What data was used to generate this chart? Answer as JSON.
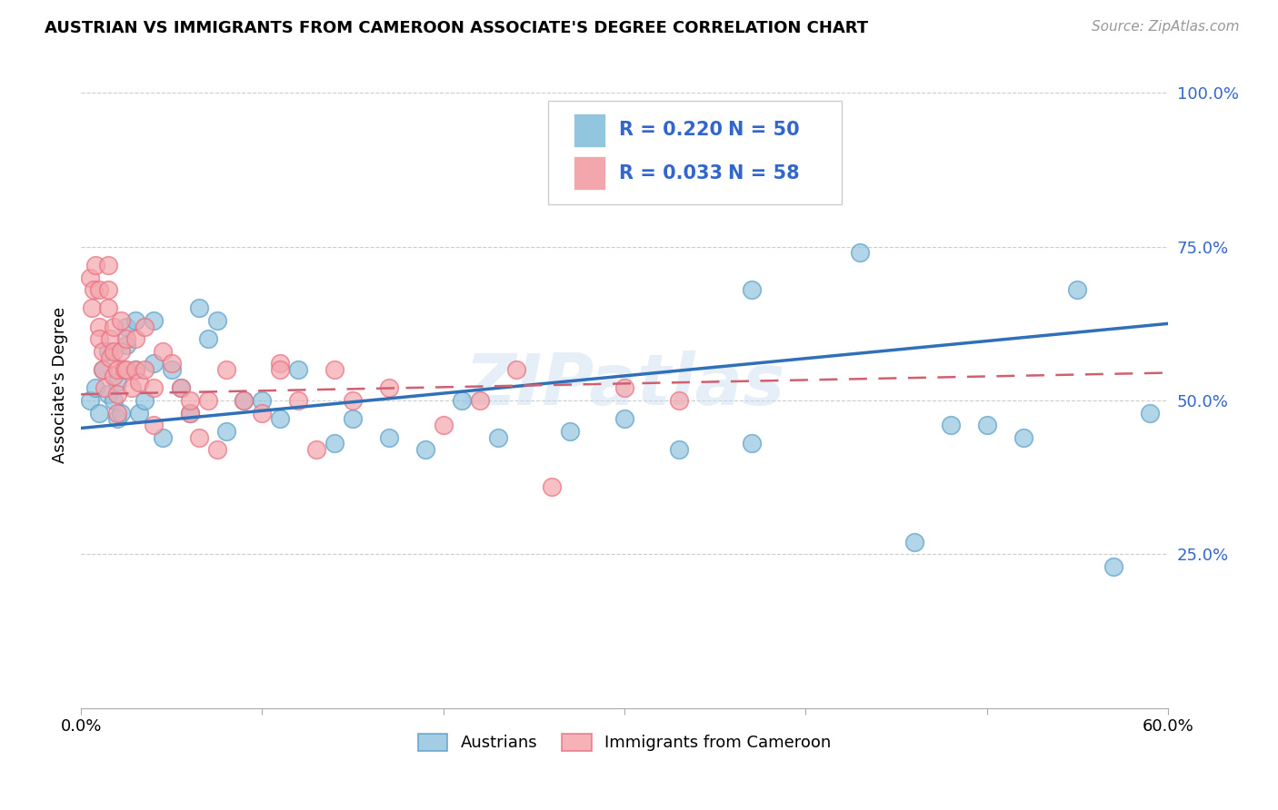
{
  "title": "AUSTRIAN VS IMMIGRANTS FROM CAMEROON ASSOCIATE'S DEGREE CORRELATION CHART",
  "source": "Source: ZipAtlas.com",
  "ylabel": "Associate's Degree",
  "xlim": [
    0.0,
    0.6
  ],
  "ylim": [
    0.0,
    1.05
  ],
  "ytick_vals": [
    0.0,
    0.25,
    0.5,
    0.75,
    1.0
  ],
  "ytick_labels": [
    "",
    "25.0%",
    "50.0%",
    "75.0%",
    "100.0%"
  ],
  "xtick_vals": [
    0.0,
    0.1,
    0.2,
    0.3,
    0.4,
    0.5,
    0.6
  ],
  "xtick_labels": [
    "0.0%",
    "",
    "",
    "",
    "",
    "",
    "60.0%"
  ],
  "watermark": "ZIPatlas",
  "legend_r_blue": "0.220",
  "legend_n_blue": "50",
  "legend_r_pink": "0.033",
  "legend_n_pink": "58",
  "blue_color": "#92c5de",
  "pink_color": "#f4a6ad",
  "blue_edge_color": "#5b9dc9",
  "pink_edge_color": "#e87080",
  "blue_line_color": "#3070b8",
  "pink_line_color": "#d06070",
  "legend_text_color": "#3366cc",
  "legend_label_blue": "Austrians",
  "legend_label_pink": "Immigrants from Cameroon",
  "blue_scatter_x": [
    0.005,
    0.008,
    0.01,
    0.012,
    0.015,
    0.015,
    0.018,
    0.02,
    0.02,
    0.022,
    0.025,
    0.025,
    0.03,
    0.03,
    0.032,
    0.035,
    0.04,
    0.04,
    0.045,
    0.05,
    0.055,
    0.06,
    0.065,
    0.07,
    0.075,
    0.08,
    0.09,
    0.1,
    0.11,
    0.12,
    0.14,
    0.15,
    0.17,
    0.19,
    0.21,
    0.23,
    0.27,
    0.3,
    0.33,
    0.37,
    0.4,
    0.43,
    0.46,
    0.48,
    0.5,
    0.52,
    0.55,
    0.57,
    0.37,
    0.59
  ],
  "blue_scatter_y": [
    0.5,
    0.52,
    0.48,
    0.55,
    0.58,
    0.51,
    0.5,
    0.47,
    0.53,
    0.48,
    0.62,
    0.59,
    0.63,
    0.55,
    0.48,
    0.5,
    0.63,
    0.56,
    0.44,
    0.55,
    0.52,
    0.48,
    0.65,
    0.6,
    0.63,
    0.45,
    0.5,
    0.5,
    0.47,
    0.55,
    0.43,
    0.47,
    0.44,
    0.42,
    0.5,
    0.44,
    0.45,
    0.47,
    0.42,
    0.68,
    0.86,
    0.74,
    0.27,
    0.46,
    0.46,
    0.44,
    0.68,
    0.23,
    0.43,
    0.48
  ],
  "pink_scatter_x": [
    0.005,
    0.006,
    0.007,
    0.008,
    0.01,
    0.01,
    0.01,
    0.012,
    0.012,
    0.013,
    0.015,
    0.015,
    0.015,
    0.016,
    0.016,
    0.018,
    0.018,
    0.018,
    0.02,
    0.02,
    0.02,
    0.022,
    0.022,
    0.024,
    0.025,
    0.025,
    0.028,
    0.03,
    0.03,
    0.032,
    0.035,
    0.035,
    0.04,
    0.04,
    0.045,
    0.05,
    0.055,
    0.06,
    0.065,
    0.07,
    0.075,
    0.08,
    0.09,
    0.1,
    0.11,
    0.13,
    0.15,
    0.17,
    0.2,
    0.22,
    0.24,
    0.26,
    0.14,
    0.3,
    0.33,
    0.11,
    0.06,
    0.12
  ],
  "pink_scatter_y": [
    0.7,
    0.65,
    0.68,
    0.72,
    0.62,
    0.6,
    0.68,
    0.58,
    0.55,
    0.52,
    0.72,
    0.68,
    0.65,
    0.6,
    0.57,
    0.62,
    0.58,
    0.54,
    0.55,
    0.51,
    0.48,
    0.63,
    0.58,
    0.55,
    0.6,
    0.55,
    0.52,
    0.6,
    0.55,
    0.53,
    0.62,
    0.55,
    0.52,
    0.46,
    0.58,
    0.56,
    0.52,
    0.48,
    0.44,
    0.5,
    0.42,
    0.55,
    0.5,
    0.48,
    0.56,
    0.42,
    0.5,
    0.52,
    0.46,
    0.5,
    0.55,
    0.36,
    0.55,
    0.52,
    0.5,
    0.55,
    0.5,
    0.5
  ],
  "blue_line_x": [
    0.0,
    0.6
  ],
  "blue_line_y": [
    0.455,
    0.625
  ],
  "pink_line_x": [
    0.0,
    0.6
  ],
  "pink_line_y": [
    0.51,
    0.545
  ]
}
